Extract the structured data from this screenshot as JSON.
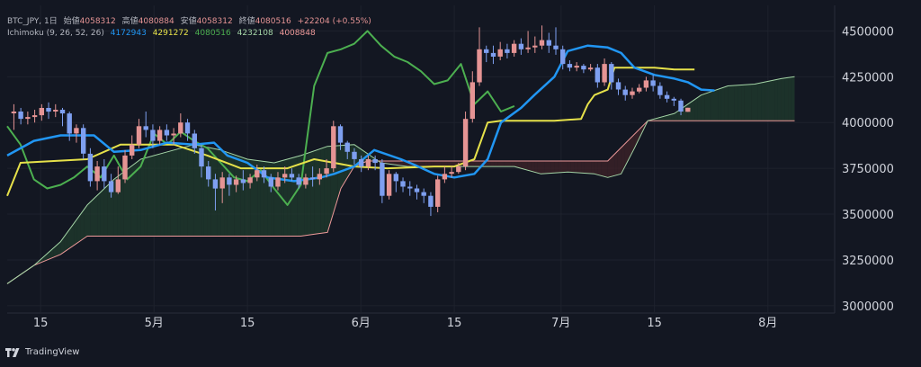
{
  "header": {
    "symbol": "BTC_JPY, 1日",
    "open_label": "始値",
    "open": "4058312",
    "high_label": "高値",
    "high": "4080884",
    "low_label": "安値",
    "low": "4058312",
    "close_label": "終値",
    "close": "4080516",
    "change": "+22204 (+0.55%)"
  },
  "indicator": {
    "name": "Ichimoku (9, 26, 52, 26)",
    "values": [
      "4172943",
      "4291272",
      "4080516",
      "4232108",
      "4008848"
    ],
    "colors": [
      "#2196f3",
      "#e6e14a",
      "#4caf50",
      "#a5d6a7",
      "#ef9a9a"
    ]
  },
  "brand": "TradingView",
  "colors": {
    "background": "#131722",
    "up": "#e59494",
    "down": "#7e9ff0",
    "tenkan": "#2196f3",
    "kijun": "#e6e14a",
    "chikou": "#4caf50",
    "spanA": "#a5d6a7",
    "spanB": "#ef9a9a",
    "cloud_bull": "#1f3a2d",
    "cloud_bear": "#3c2228",
    "last_price": "#26a69a"
  },
  "chart_data": {
    "type": "candlestick",
    "y_ticks": [
      "4500000",
      "4250000",
      "4000000",
      "3750000",
      "3500000",
      "3250000",
      "3000000"
    ],
    "y_tick_values": [
      4500000,
      4250000,
      4000000,
      3750000,
      3500000,
      3250000,
      3000000
    ],
    "ylim": [
      2960000,
      4620000
    ],
    "x_ticks": [
      {
        "label": "15",
        "day": -17
      },
      {
        "label": "5月",
        "day": 0
      },
      {
        "label": "15",
        "day": 14
      },
      {
        "label": "6月",
        "day": 31
      },
      {
        "label": "15",
        "day": 45
      },
      {
        "label": "7月",
        "day": 61
      },
      {
        "label": "15",
        "day": 75
      },
      {
        "label": "8月",
        "day": 92
      }
    ],
    "xlim": [
      -22,
      102
    ],
    "candles_range": [
      -21,
      80
    ],
    "candles": [
      [
        4050000,
        4060000,
        4100000,
        3960000
      ],
      [
        4060000,
        4020000,
        4080000,
        3990000
      ],
      [
        4020000,
        4030000,
        4060000,
        3990000
      ],
      [
        4030000,
        4040000,
        4070000,
        4000000
      ],
      [
        4040000,
        4080000,
        4100000,
        4010000
      ],
      [
        4080000,
        4060000,
        4110000,
        4020000
      ],
      [
        4060000,
        4070000,
        4100000,
        4030000
      ],
      [
        4070000,
        4050000,
        4080000,
        3980000
      ],
      [
        4050000,
        3940000,
        4060000,
        3900000
      ],
      [
        3940000,
        3970000,
        3990000,
        3890000
      ],
      [
        3970000,
        3830000,
        3990000,
        3800000
      ],
      [
        3830000,
        3680000,
        3860000,
        3650000
      ],
      [
        3680000,
        3760000,
        3790000,
        3630000
      ],
      [
        3760000,
        3680000,
        3800000,
        3640000
      ],
      [
        3680000,
        3620000,
        3720000,
        3590000
      ],
      [
        3620000,
        3690000,
        3760000,
        3610000
      ],
      [
        3690000,
        3820000,
        3850000,
        3670000
      ],
      [
        3820000,
        3880000,
        3930000,
        3800000
      ],
      [
        3880000,
        3980000,
        4020000,
        3860000
      ],
      [
        3980000,
        3960000,
        4060000,
        3920000
      ],
      [
        3960000,
        3900000,
        3990000,
        3860000
      ],
      [
        3900000,
        3960000,
        3980000,
        3880000
      ],
      [
        3960000,
        3930000,
        3990000,
        3900000
      ],
      [
        3930000,
        3940000,
        3970000,
        3880000
      ],
      [
        3940000,
        4000000,
        4050000,
        3920000
      ],
      [
        4000000,
        3940000,
        4020000,
        3900000
      ],
      [
        3940000,
        3860000,
        3960000,
        3830000
      ],
      [
        3860000,
        3760000,
        3880000,
        3700000
      ],
      [
        3760000,
        3690000,
        3790000,
        3650000
      ],
      [
        3690000,
        3640000,
        3720000,
        3520000
      ],
      [
        3640000,
        3700000,
        3730000,
        3560000
      ],
      [
        3700000,
        3660000,
        3720000,
        3600000
      ],
      [
        3660000,
        3690000,
        3710000,
        3620000
      ],
      [
        3690000,
        3670000,
        3740000,
        3630000
      ],
      [
        3670000,
        3700000,
        3720000,
        3640000
      ],
      [
        3700000,
        3740000,
        3770000,
        3680000
      ],
      [
        3740000,
        3700000,
        3760000,
        3670000
      ],
      [
        3700000,
        3650000,
        3720000,
        3620000
      ],
      [
        3650000,
        3700000,
        3730000,
        3630000
      ],
      [
        3700000,
        3720000,
        3760000,
        3670000
      ],
      [
        3720000,
        3700000,
        3750000,
        3680000
      ],
      [
        3700000,
        3660000,
        3720000,
        3640000
      ],
      [
        3660000,
        3700000,
        3720000,
        3640000
      ],
      [
        3700000,
        3690000,
        3760000,
        3650000
      ],
      [
        3690000,
        3720000,
        3750000,
        3660000
      ],
      [
        3720000,
        3750000,
        3800000,
        3700000
      ],
      [
        3750000,
        3980000,
        4010000,
        3730000
      ],
      [
        3980000,
        3890000,
        3990000,
        3850000
      ],
      [
        3890000,
        3840000,
        3900000,
        3800000
      ],
      [
        3840000,
        3800000,
        3860000,
        3770000
      ],
      [
        3800000,
        3760000,
        3820000,
        3730000
      ],
      [
        3760000,
        3800000,
        3820000,
        3740000
      ],
      [
        3800000,
        3780000,
        3820000,
        3740000
      ],
      [
        3780000,
        3600000,
        3800000,
        3560000
      ],
      [
        3600000,
        3720000,
        3740000,
        3580000
      ],
      [
        3720000,
        3680000,
        3730000,
        3620000
      ],
      [
        3680000,
        3650000,
        3700000,
        3620000
      ],
      [
        3650000,
        3640000,
        3680000,
        3600000
      ],
      [
        3640000,
        3620000,
        3660000,
        3580000
      ],
      [
        3620000,
        3600000,
        3640000,
        3560000
      ],
      [
        3600000,
        3540000,
        3620000,
        3490000
      ],
      [
        3540000,
        3690000,
        3710000,
        3510000
      ],
      [
        3690000,
        3720000,
        3760000,
        3670000
      ],
      [
        3720000,
        3730000,
        3760000,
        3700000
      ],
      [
        3730000,
        3760000,
        3780000,
        3720000
      ],
      [
        3760000,
        4020000,
        4060000,
        3740000
      ],
      [
        4020000,
        4220000,
        4280000,
        4000000
      ],
      [
        4220000,
        4400000,
        4520000,
        4200000
      ],
      [
        4400000,
        4380000,
        4420000,
        4330000
      ],
      [
        4380000,
        4360000,
        4420000,
        4320000
      ],
      [
        4360000,
        4400000,
        4440000,
        4340000
      ],
      [
        4400000,
        4380000,
        4430000,
        4350000
      ],
      [
        4380000,
        4430000,
        4450000,
        4360000
      ],
      [
        4430000,
        4400000,
        4460000,
        4370000
      ],
      [
        4400000,
        4410000,
        4500000,
        4380000
      ],
      [
        4410000,
        4420000,
        4470000,
        4380000
      ],
      [
        4420000,
        4450000,
        4530000,
        4400000
      ],
      [
        4450000,
        4420000,
        4490000,
        4380000
      ],
      [
        4420000,
        4400000,
        4520000,
        4370000
      ],
      [
        4400000,
        4320000,
        4420000,
        4290000
      ],
      [
        4320000,
        4300000,
        4340000,
        4280000
      ],
      [
        4300000,
        4310000,
        4330000,
        4280000
      ],
      [
        4310000,
        4290000,
        4320000,
        4270000
      ],
      [
        4290000,
        4300000,
        4320000,
        4280000
      ],
      [
        4300000,
        4220000,
        4320000,
        4190000
      ],
      [
        4220000,
        4320000,
        4350000,
        4200000
      ],
      [
        4320000,
        4220000,
        4330000,
        4180000
      ],
      [
        4220000,
        4180000,
        4240000,
        4150000
      ],
      [
        4180000,
        4150000,
        4200000,
        4120000
      ],
      [
        4150000,
        4170000,
        4190000,
        4130000
      ],
      [
        4170000,
        4190000,
        4210000,
        4160000
      ],
      [
        4190000,
        4230000,
        4250000,
        4170000
      ],
      [
        4230000,
        4200000,
        4260000,
        4170000
      ],
      [
        4200000,
        4150000,
        4220000,
        4130000
      ],
      [
        4150000,
        4130000,
        4170000,
        4110000
      ],
      [
        4130000,
        4120000,
        4140000,
        4090000
      ],
      [
        4120000,
        4060000,
        4130000,
        4040000
      ],
      [
        4058312,
        4080516,
        4080884,
        4058312
      ]
    ],
    "tenkan": [
      [
        -22,
        3820000
      ],
      [
        -18,
        3900000
      ],
      [
        -14,
        3930000
      ],
      [
        -9,
        3930000
      ],
      [
        -6,
        3840000
      ],
      [
        -2,
        3850000
      ],
      [
        2,
        3890000
      ],
      [
        6,
        3880000
      ],
      [
        9,
        3890000
      ],
      [
        11,
        3820000
      ],
      [
        14,
        3780000
      ],
      [
        17,
        3700000
      ],
      [
        21,
        3680000
      ],
      [
        25,
        3700000
      ],
      [
        27,
        3720000
      ],
      [
        30,
        3760000
      ],
      [
        33,
        3850000
      ],
      [
        37,
        3800000
      ],
      [
        39,
        3770000
      ],
      [
        42,
        3720000
      ],
      [
        45,
        3700000
      ],
      [
        48,
        3720000
      ],
      [
        50,
        3800000
      ],
      [
        52,
        4000000
      ],
      [
        55,
        4080000
      ],
      [
        57,
        4150000
      ],
      [
        60,
        4250000
      ],
      [
        62,
        4390000
      ],
      [
        65,
        4420000
      ],
      [
        68,
        4410000
      ],
      [
        70,
        4380000
      ],
      [
        72,
        4300000
      ],
      [
        75,
        4260000
      ],
      [
        78,
        4240000
      ],
      [
        80,
        4220000
      ],
      [
        82,
        4180000
      ],
      [
        84,
        4175000
      ]
    ],
    "kijun": [
      [
        -22,
        3600000
      ],
      [
        -20,
        3780000
      ],
      [
        -10,
        3800000
      ],
      [
        -5,
        3880000
      ],
      [
        3,
        3880000
      ],
      [
        8,
        3820000
      ],
      [
        13,
        3750000
      ],
      [
        20,
        3750000
      ],
      [
        24,
        3800000
      ],
      [
        27,
        3780000
      ],
      [
        30,
        3760000
      ],
      [
        35,
        3750000
      ],
      [
        42,
        3760000
      ],
      [
        45,
        3760000
      ],
      [
        48,
        3800000
      ],
      [
        49,
        3900000
      ],
      [
        50,
        4000000
      ],
      [
        52,
        4010000
      ],
      [
        60,
        4010000
      ],
      [
        64,
        4020000
      ],
      [
        65,
        4100000
      ],
      [
        66,
        4150000
      ],
      [
        68,
        4180000
      ],
      [
        69,
        4300000
      ],
      [
        75,
        4300000
      ],
      [
        78,
        4290000
      ],
      [
        81,
        4290000
      ]
    ],
    "chikou": [
      [
        -22,
        3980000
      ],
      [
        -20,
        3880000
      ],
      [
        -18,
        3690000
      ],
      [
        -16,
        3640000
      ],
      [
        -14,
        3660000
      ],
      [
        -12,
        3700000
      ],
      [
        -10,
        3760000
      ],
      [
        -8,
        3700000
      ],
      [
        -6,
        3820000
      ],
      [
        -4,
        3690000
      ],
      [
        -2,
        3760000
      ],
      [
        0,
        3940000
      ],
      [
        2,
        3880000
      ],
      [
        4,
        3950000
      ],
      [
        6,
        3900000
      ],
      [
        8,
        3860000
      ],
      [
        10,
        3780000
      ],
      [
        12,
        3700000
      ],
      [
        14,
        3680000
      ],
      [
        16,
        3740000
      ],
      [
        18,
        3640000
      ],
      [
        20,
        3550000
      ],
      [
        22,
        3660000
      ],
      [
        24,
        4200000
      ],
      [
        26,
        4380000
      ],
      [
        28,
        4400000
      ],
      [
        30,
        4430000
      ],
      [
        32,
        4500000
      ],
      [
        34,
        4420000
      ],
      [
        36,
        4360000
      ],
      [
        38,
        4330000
      ],
      [
        40,
        4280000
      ],
      [
        42,
        4210000
      ],
      [
        44,
        4230000
      ],
      [
        46,
        4320000
      ],
      [
        48,
        4100000
      ],
      [
        50,
        4170000
      ],
      [
        52,
        4060000
      ],
      [
        54,
        4090000
      ]
    ],
    "spanA": [
      [
        -22,
        3120000
      ],
      [
        -18,
        3220000
      ],
      [
        -14,
        3350000
      ],
      [
        -10,
        3550000
      ],
      [
        -6,
        3690000
      ],
      [
        -2,
        3800000
      ],
      [
        2,
        3840000
      ],
      [
        6,
        3880000
      ],
      [
        10,
        3850000
      ],
      [
        14,
        3800000
      ],
      [
        18,
        3780000
      ],
      [
        22,
        3820000
      ],
      [
        26,
        3870000
      ],
      [
        30,
        3880000
      ],
      [
        34,
        3780000
      ],
      [
        38,
        3760000
      ],
      [
        42,
        3760000
      ],
      [
        46,
        3760000
      ],
      [
        50,
        3760000
      ],
      [
        54,
        3760000
      ],
      [
        58,
        3720000
      ],
      [
        62,
        3730000
      ],
      [
        66,
        3720000
      ],
      [
        68,
        3700000
      ],
      [
        70,
        3720000
      ],
      [
        72,
        3860000
      ],
      [
        74,
        4010000
      ],
      [
        78,
        4050000
      ],
      [
        82,
        4150000
      ],
      [
        86,
        4200000
      ],
      [
        90,
        4210000
      ],
      [
        94,
        4240000
      ],
      [
        96,
        4250000
      ]
    ],
    "spanB": [
      [
        -22,
        3120000
      ],
      [
        -18,
        3220000
      ],
      [
        -14,
        3280000
      ],
      [
        -10,
        3380000
      ],
      [
        -6,
        3380000
      ],
      [
        -2,
        3380000
      ],
      [
        2,
        3380000
      ],
      [
        6,
        3380000
      ],
      [
        10,
        3380000
      ],
      [
        14,
        3380000
      ],
      [
        18,
        3380000
      ],
      [
        22,
        3380000
      ],
      [
        24,
        3390000
      ],
      [
        26,
        3400000
      ],
      [
        28,
        3640000
      ],
      [
        30,
        3760000
      ],
      [
        32,
        3790000
      ],
      [
        36,
        3790000
      ],
      [
        44,
        3790000
      ],
      [
        52,
        3790000
      ],
      [
        60,
        3790000
      ],
      [
        68,
        3790000
      ],
      [
        74,
        4010000
      ],
      [
        80,
        4010000
      ],
      [
        86,
        4010000
      ],
      [
        92,
        4010000
      ],
      [
        96,
        4010000
      ]
    ]
  }
}
